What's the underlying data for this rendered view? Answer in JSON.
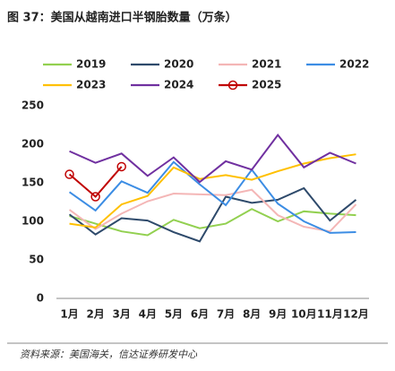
{
  "chart_data": {
    "type": "line",
    "title": "图 37：美国从越南进口半钢胎数量（万条）",
    "source": "资料来源：美国海关，信达证券研发中心",
    "categories": [
      "1月",
      "2月",
      "3月",
      "4月",
      "5月",
      "6月",
      "7月",
      "8月",
      "9月",
      "10月",
      "11月",
      "12月"
    ],
    "series": [
      {
        "name": "2019",
        "color": "#92d050",
        "values": [
          107,
          97,
          87,
          82,
          102,
          91,
          97,
          116,
          100,
          113,
          110,
          108
        ]
      },
      {
        "name": "2020",
        "color": "#2e4a6b",
        "values": [
          109,
          83,
          104,
          101,
          86,
          74,
          132,
          124,
          128,
          143,
          101,
          128
        ]
      },
      {
        "name": "2021",
        "color": "#f4b6b6",
        "values": [
          115,
          90,
          110,
          126,
          136,
          135,
          134,
          141,
          108,
          93,
          87,
          122
        ]
      },
      {
        "name": "2022",
        "color": "#3c8de4",
        "values": [
          138,
          114,
          152,
          137,
          177,
          148,
          121,
          167,
          123,
          100,
          85,
          86
        ]
      },
      {
        "name": "2023",
        "color": "#ffc000",
        "values": [
          97,
          92,
          122,
          133,
          170,
          155,
          160,
          154,
          165,
          175,
          182,
          187
        ]
      },
      {
        "name": "2024",
        "color": "#7030a0",
        "values": [
          191,
          176,
          188,
          159,
          183,
          151,
          178,
          167,
          212,
          170,
          189,
          175
        ]
      },
      {
        "name": "2025",
        "color": "#c00000",
        "markers": true,
        "values": [
          161,
          132,
          171,
          null,
          null,
          null,
          null,
          null,
          null,
          null,
          null,
          null
        ]
      }
    ],
    "ylim": [
      0,
      250
    ],
    "yticks": [
      0,
      50,
      100,
      150,
      200,
      250
    ]
  }
}
